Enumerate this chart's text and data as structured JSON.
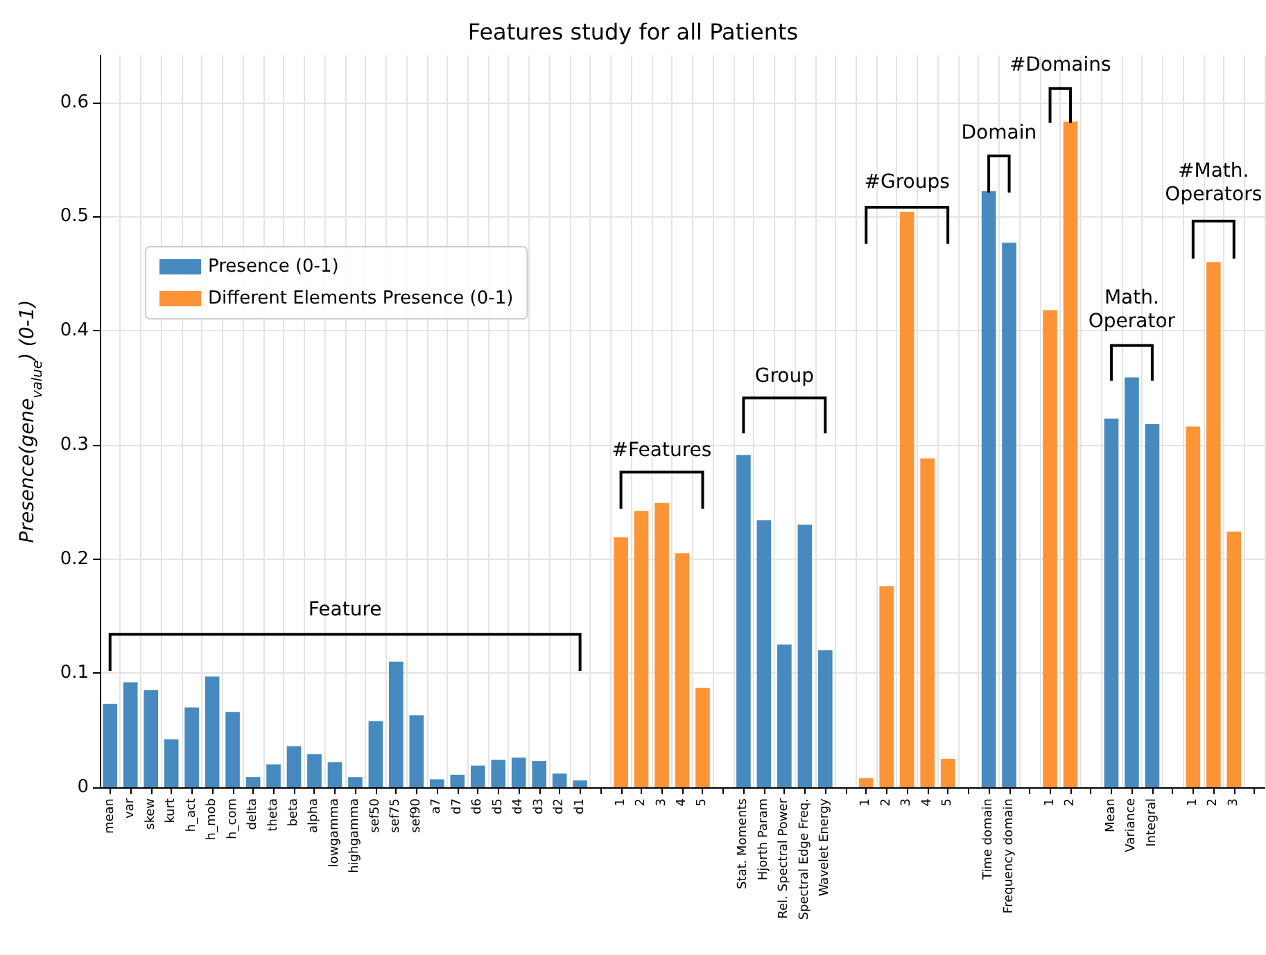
{
  "chart_data": {
    "type": "bar",
    "title": "Features study for all Patients",
    "ylabel": "Presence(gene$_{value}$) (0-1)",
    "categories": [
      "mean",
      "var",
      "skew",
      "kurt",
      "h_act",
      "h_mob",
      "h_com",
      "delta",
      "theta",
      "beta",
      "alpha",
      "lowgamma",
      "highgamma",
      "sef50",
      "sef75",
      "sef90",
      "a7",
      "d7",
      "d6",
      "d5",
      "d4",
      "d3",
      "d2",
      "d1",
      null,
      "1",
      "2",
      "3",
      "4",
      "5",
      null,
      "Stat. Moments",
      "Hjorth Param",
      "Rel. Spectral Power",
      "Spectral Edge Freq.",
      "Wavelet Energy",
      null,
      "1",
      "2",
      "3",
      "4",
      "5",
      null,
      "Time domain",
      "Frequency domain",
      null,
      "1",
      "2",
      null,
      "Mean",
      "Variance",
      "Integral",
      null,
      "1",
      "2",
      "3",
      null
    ],
    "series": [
      {
        "name": "Presence (0-1)",
        "color": "#468ac0",
        "values": [
          0.073,
          0.092,
          0.085,
          0.042,
          0.07,
          0.097,
          0.066,
          0.009,
          0.02,
          0.036,
          0.029,
          0.022,
          0.009,
          0.058,
          0.11,
          0.063,
          0.007,
          0.011,
          0.019,
          0.024,
          0.026,
          0.023,
          0.012,
          0.006,
          null,
          null,
          null,
          null,
          null,
          null,
          null,
          0.291,
          0.234,
          0.125,
          0.23,
          0.12,
          null,
          null,
          null,
          null,
          null,
          null,
          null,
          0.522,
          0.477,
          null,
          null,
          null,
          null,
          0.323,
          0.359,
          0.318,
          null,
          null,
          null,
          null,
          null
        ]
      },
      {
        "name": "Different Elements Presence (0-1)",
        "color": "#fd9436",
        "values": [
          null,
          null,
          null,
          null,
          null,
          null,
          null,
          null,
          null,
          null,
          null,
          null,
          null,
          null,
          null,
          null,
          null,
          null,
          null,
          null,
          null,
          null,
          null,
          null,
          null,
          0.219,
          0.242,
          0.249,
          0.205,
          0.087,
          null,
          null,
          null,
          null,
          null,
          null,
          null,
          0.008,
          0.176,
          0.504,
          0.288,
          0.025,
          null,
          null,
          null,
          null,
          0.418,
          0.583,
          null,
          null,
          null,
          null,
          null,
          0.316,
          0.46,
          0.224,
          null
        ]
      }
    ],
    "annotations": [
      "Feature",
      "#Features",
      "Group",
      "#Groups",
      "Domain",
      "#Domains",
      "Math. Operator",
      "#Math. Operators"
    ],
    "ylim": [
      0,
      0.641
    ],
    "yticks": [
      0,
      0.1,
      0.2,
      0.3,
      0.4,
      0.5,
      0.6
    ],
    "grid": true,
    "legend": "top left"
  }
}
